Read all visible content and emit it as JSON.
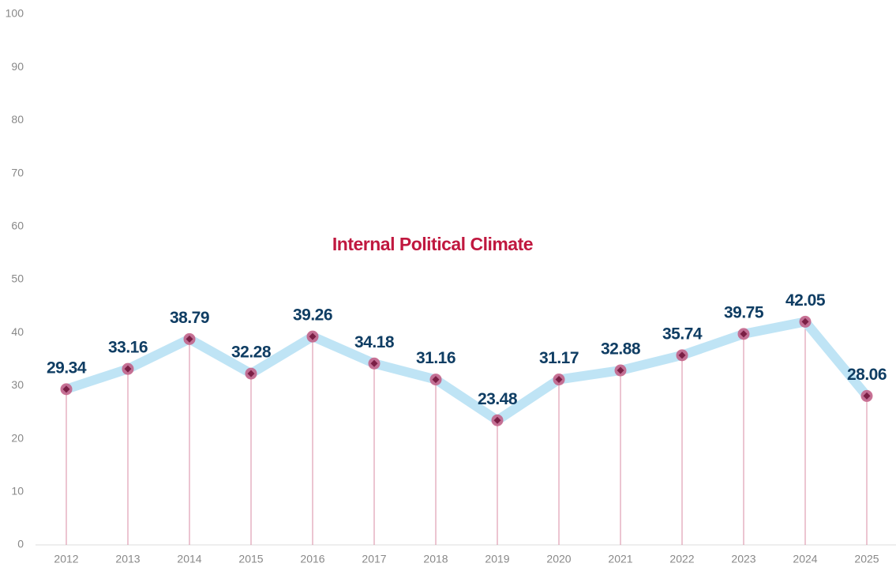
{
  "chart_data": {
    "type": "line",
    "title": "Internal Political Climate",
    "categories": [
      "2012",
      "2013",
      "2014",
      "2015",
      "2016",
      "2017",
      "2018",
      "2019",
      "2020",
      "2021",
      "2022",
      "2023",
      "2024",
      "2025"
    ],
    "values": [
      29.34,
      33.16,
      38.79,
      32.28,
      39.26,
      34.18,
      31.16,
      23.48,
      31.17,
      32.88,
      35.74,
      39.75,
      42.05,
      28.06
    ],
    "color": "#bfe4f5",
    "marker_color": "#c25a82",
    "ylim": [
      0,
      100
    ],
    "yticks": [
      0,
      10,
      20,
      30,
      40,
      50,
      60,
      70,
      80,
      90,
      100
    ],
    "grid": false
  }
}
